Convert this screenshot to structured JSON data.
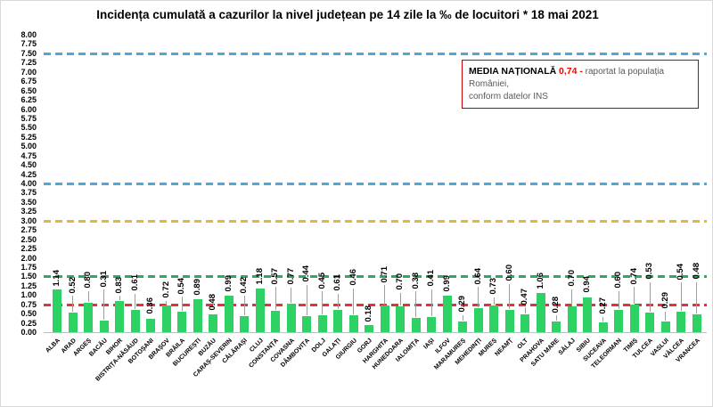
{
  "page": {
    "background": "#ffffff",
    "border_color": "#d9d9d9"
  },
  "chart_data": {
    "type": "bar",
    "title": "Incidența cumulată a cazurilor la nivel județean pe 14 zile la ‰ de locuitori *  18 mai 2021",
    "categories": [
      "ALBA",
      "ARAD",
      "ARGEȘ",
      "BACĂU",
      "BIHOR",
      "BISTRIȚA-NĂSĂUD",
      "BOTOȘANI",
      "BRAȘOV",
      "BRĂILA",
      "BUCUREȘTI",
      "BUZĂU",
      "CARAȘ-SEVERIN",
      "CĂLĂRAȘI",
      "CLUJ",
      "CONSTANȚA",
      "COVASNA",
      "DÂMBOVIȚA",
      "DOLJ",
      "GALAȚI",
      "GIURGIU",
      "GORJ",
      "HARGHITA",
      "HUNEDOARA",
      "IALOMIȚA",
      "IAȘI",
      "ILFOV",
      "MARAMUREȘ",
      "MEHEDINȚI",
      "MUREȘ",
      "NEAMȚ",
      "OLT",
      "PRAHOVA",
      "SATU MARE",
      "SĂLAJ",
      "SIBIU",
      "SUCEAVA",
      "TELEORMAN",
      "TIMIȘ",
      "TULCEA",
      "VASLUI",
      "VÂLCEA",
      "VRANCEA"
    ],
    "values": [
      1.14,
      0.52,
      0.8,
      0.31,
      0.83,
      0.61,
      0.36,
      0.72,
      0.54,
      0.89,
      0.48,
      0.99,
      0.42,
      1.18,
      0.57,
      0.77,
      0.44,
      0.45,
      0.61,
      0.46,
      0.18,
      0.71,
      0.7,
      0.38,
      0.41,
      0.99,
      0.29,
      0.64,
      0.73,
      0.6,
      0.47,
      1.06,
      0.28,
      0.7,
      0.94,
      0.27,
      0.6,
      0.74,
      0.53,
      0.29,
      0.54,
      0.48
    ],
    "ylim": [
      0,
      8
    ],
    "ytick_step": 0.25,
    "grid": false,
    "legend_position": "none",
    "bar_color": "#2ed164",
    "value_label_color": "#000000",
    "leader_line_color": "#a0a0a0",
    "reference_lines": [
      {
        "name": "threshold-7-50",
        "value": 7.5,
        "color": "#4fa7dc"
      },
      {
        "name": "threshold-4-00",
        "value": 4.0,
        "color": "#4fa7dc"
      },
      {
        "name": "threshold-3-00",
        "value": 3.0,
        "color": "#e3b838"
      },
      {
        "name": "threshold-1-50",
        "value": 1.5,
        "color": "#2fa95b"
      },
      {
        "name": "media-nationala",
        "value": 0.74,
        "color": "#e23434"
      }
    ]
  },
  "legend": {
    "label": "MEDIA NAȚIONALĂ",
    "value": "0,74 -",
    "text_line1": "raportat la populația României,",
    "text_line2": "conform datelor INS",
    "value_color": "#ff0000",
    "border_color": "#c00000"
  }
}
